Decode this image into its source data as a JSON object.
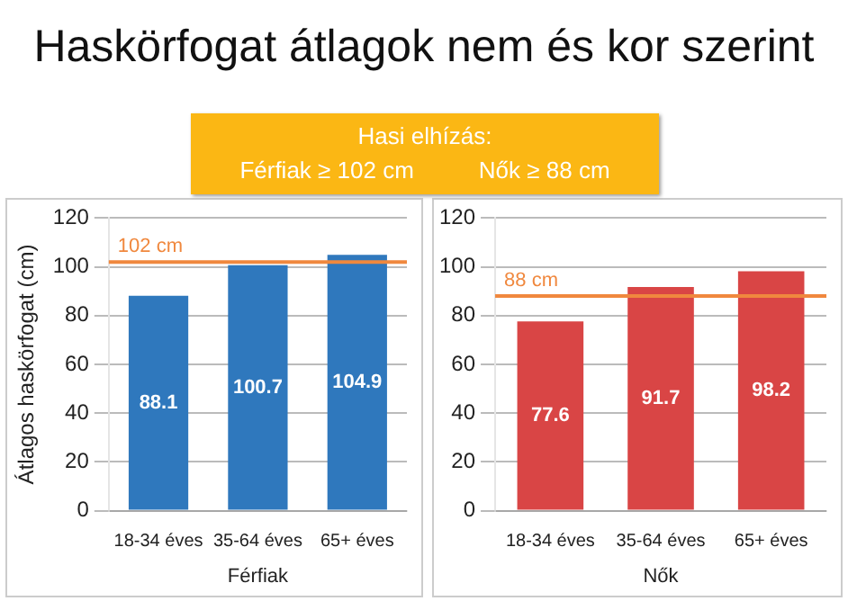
{
  "chart_data": [
    {
      "type": "bar",
      "title": "Haskörfogat átlagok nem és kor szerint",
      "annotations": [
        "Hasi elhízás:",
        "Férfiak ≥ 102 cm",
        "Nők ≥ 88 cm"
      ],
      "ylabel": "Átlagos haskörfogat (cm)",
      "xlabel": "Férfiak",
      "categories": [
        "18-34 éves",
        "35-64 éves",
        "65+ éves"
      ],
      "values": [
        88.1,
        100.7,
        104.9
      ],
      "color": "#2f78bd",
      "ylim": [
        0,
        120
      ],
      "yticks": [
        0,
        20,
        40,
        60,
        80,
        100,
        120
      ],
      "grid": "y",
      "data_labels": true,
      "ref_lines": [
        {
          "axis": "y",
          "value": 102,
          "label": "102 cm",
          "color": "#f0883e"
        }
      ]
    },
    {
      "type": "bar",
      "xlabel": "Nők",
      "categories": [
        "18-34 éves",
        "35-64 éves",
        "65+ éves"
      ],
      "values": [
        77.6,
        91.7,
        98.2
      ],
      "color": "#d94545",
      "ylim": [
        0,
        120
      ],
      "yticks": [
        0,
        20,
        40,
        60,
        80,
        100,
        120
      ],
      "grid": "y",
      "data_labels": true,
      "ref_lines": [
        {
          "axis": "y",
          "value": 88,
          "label": "88 cm",
          "color": "#f0883e"
        }
      ]
    }
  ]
}
